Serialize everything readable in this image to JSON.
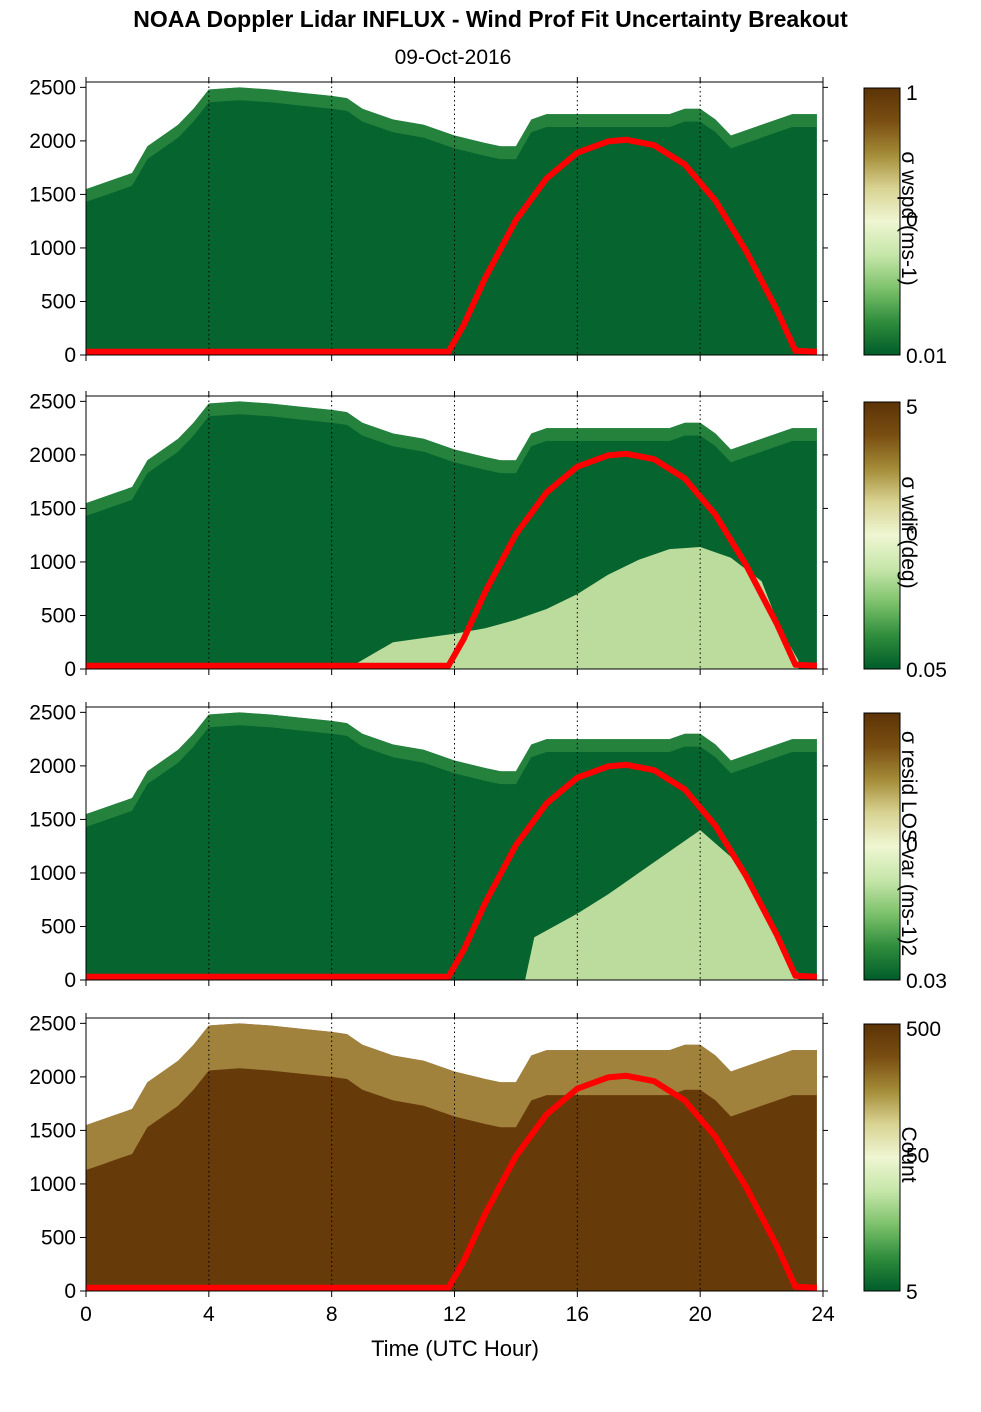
{
  "title": "NOAA Doppler Lidar INFLUX - Wind Prof Fit Uncertainty Breakout",
  "subtitle": "09-Oct-2016",
  "chart_data": {
    "type": "heatmap",
    "xlabel": "Time (UTC Hour)",
    "x_ticks": [
      0,
      4,
      8,
      12,
      16,
      20,
      24
    ],
    "x_range": [
      0,
      24
    ],
    "y_ticks": [
      0,
      500,
      1000,
      1500,
      2000,
      2500
    ],
    "y_range": [
      0,
      2550
    ],
    "vertical_dotted_lines_hours": [
      4,
      8,
      12,
      16,
      20,
      24
    ],
    "overlay_line": {
      "color": "#ff0000",
      "points": [
        [
          0,
          30
        ],
        [
          11.8,
          30
        ],
        [
          12.3,
          280
        ],
        [
          13,
          720
        ],
        [
          14,
          1260
        ],
        [
          15,
          1650
        ],
        [
          16,
          1890
        ],
        [
          17,
          1995
        ],
        [
          17.6,
          2010
        ],
        [
          18.5,
          1960
        ],
        [
          19.5,
          1780
        ],
        [
          20.5,
          1440
        ],
        [
          21.5,
          970
        ],
        [
          22.5,
          420
        ],
        [
          23.1,
          40
        ],
        [
          23.8,
          30
        ]
      ]
    },
    "colormap": [
      "#005c2a",
      "#2f8d3c",
      "#7dc26c",
      "#c6e6a9",
      "#eef6d2",
      "#d9d393",
      "#a48c38",
      "#7a4e12",
      "#5c3306"
    ],
    "panels": [
      {
        "name": "wspd",
        "colorbar_label": "σ wspd (ms-1)",
        "colorbar_ticks": [
          "1",
          "0",
          "0.01"
        ],
        "field": {
          "top": [
            [
              0,
              1550
            ],
            [
              0.5,
              1600
            ],
            [
              1,
              1650
            ],
            [
              1.5,
              1700
            ],
            [
              2,
              1950
            ],
            [
              2.5,
              2050
            ],
            [
              3,
              2150
            ],
            [
              3.5,
              2300
            ],
            [
              4,
              2480
            ],
            [
              5,
              2500
            ],
            [
              6,
              2480
            ],
            [
              7,
              2450
            ],
            [
              8,
              2420
            ],
            [
              8.5,
              2400
            ],
            [
              9,
              2300
            ],
            [
              10,
              2200
            ],
            [
              11,
              2150
            ],
            [
              12,
              2050
            ],
            [
              13,
              1980
            ],
            [
              13.5,
              1950
            ],
            [
              14,
              1950
            ],
            [
              14.5,
              2200
            ],
            [
              15,
              2250
            ],
            [
              16,
              2250
            ],
            [
              17,
              2250
            ],
            [
              18,
              2250
            ],
            [
              19,
              2250
            ],
            [
              19.5,
              2300
            ],
            [
              20,
              2300
            ],
            [
              20.5,
              2200
            ],
            [
              21,
              2050
            ],
            [
              22,
              2150
            ],
            [
              23,
              2250
            ],
            [
              23.8,
              2250
            ]
          ],
          "low_layer": []
        }
      },
      {
        "name": "wdir",
        "colorbar_label": "σ wdir (deg)",
        "colorbar_ticks": [
          "5",
          "0",
          "0.05"
        ],
        "field": {
          "top": [
            [
              0,
              1550
            ],
            [
              0.5,
              1600
            ],
            [
              1,
              1650
            ],
            [
              1.5,
              1700
            ],
            [
              2,
              1950
            ],
            [
              2.5,
              2050
            ],
            [
              3,
              2150
            ],
            [
              3.5,
              2300
            ],
            [
              4,
              2480
            ],
            [
              5,
              2500
            ],
            [
              6,
              2480
            ],
            [
              7,
              2450
            ],
            [
              8,
              2420
            ],
            [
              8.5,
              2400
            ],
            [
              9,
              2300
            ],
            [
              10,
              2200
            ],
            [
              11,
              2150
            ],
            [
              12,
              2050
            ],
            [
              13,
              1980
            ],
            [
              13.5,
              1950
            ],
            [
              14,
              1950
            ],
            [
              14.5,
              2200
            ],
            [
              15,
              2250
            ],
            [
              16,
              2250
            ],
            [
              17,
              2250
            ],
            [
              18,
              2250
            ],
            [
              19,
              2250
            ],
            [
              19.5,
              2300
            ],
            [
              20,
              2300
            ],
            [
              20.5,
              2200
            ],
            [
              21,
              2050
            ],
            [
              22,
              2150
            ],
            [
              23,
              2250
            ],
            [
              23.8,
              2250
            ]
          ],
          "low_layer": [
            [
              8.5,
              0
            ],
            [
              10,
              250
            ],
            [
              12,
              330
            ],
            [
              13,
              380
            ],
            [
              14,
              460
            ],
            [
              15,
              560
            ],
            [
              16,
              700
            ],
            [
              17,
              880
            ],
            [
              18,
              1020
            ],
            [
              19,
              1120
            ],
            [
              20,
              1140
            ],
            [
              21,
              1040
            ],
            [
              22,
              820
            ],
            [
              22.6,
              380
            ],
            [
              23.2,
              80
            ]
          ]
        }
      },
      {
        "name": "resid",
        "colorbar_label": "σ resid LOS var (ms-1)2",
        "colorbar_ticks": [
          "0",
          "0.03"
        ],
        "field": {
          "top": [
            [
              0,
              1550
            ],
            [
              0.5,
              1600
            ],
            [
              1,
              1650
            ],
            [
              1.5,
              1700
            ],
            [
              2,
              1950
            ],
            [
              2.5,
              2050
            ],
            [
              3,
              2150
            ],
            [
              3.5,
              2300
            ],
            [
              4,
              2480
            ],
            [
              5,
              2500
            ],
            [
              6,
              2480
            ],
            [
              7,
              2450
            ],
            [
              8,
              2420
            ],
            [
              8.5,
              2400
            ],
            [
              9,
              2300
            ],
            [
              10,
              2200
            ],
            [
              11,
              2150
            ],
            [
              12,
              2050
            ],
            [
              13,
              1980
            ],
            [
              13.5,
              1950
            ],
            [
              14,
              1950
            ],
            [
              14.5,
              2200
            ],
            [
              15,
              2250
            ],
            [
              16,
              2250
            ],
            [
              17,
              2250
            ],
            [
              18,
              2250
            ],
            [
              19,
              2250
            ],
            [
              19.5,
              2300
            ],
            [
              20,
              2300
            ],
            [
              20.5,
              2200
            ],
            [
              21,
              2050
            ],
            [
              22,
              2150
            ],
            [
              23,
              2250
            ],
            [
              23.8,
              2250
            ]
          ],
          "low_layer": [
            [
              14.3,
              0
            ],
            [
              14.6,
              400
            ],
            [
              16,
              620
            ],
            [
              17,
              800
            ],
            [
              18,
              1000
            ],
            [
              19,
              1200
            ],
            [
              20,
              1400
            ],
            [
              21,
              1150
            ],
            [
              22,
              700
            ],
            [
              22.6,
              300
            ],
            [
              23.2,
              60
            ]
          ]
        }
      },
      {
        "name": "count",
        "colorbar_label": "Count",
        "colorbar_ticks": [
          "500",
          "50",
          "5"
        ],
        "field": {
          "top": [
            [
              0,
              1550
            ],
            [
              0.5,
              1600
            ],
            [
              1,
              1650
            ],
            [
              1.5,
              1700
            ],
            [
              2,
              1950
            ],
            [
              2.5,
              2050
            ],
            [
              3,
              2150
            ],
            [
              3.5,
              2300
            ],
            [
              4,
              2480
            ],
            [
              5,
              2500
            ],
            [
              6,
              2480
            ],
            [
              7,
              2450
            ],
            [
              8,
              2420
            ],
            [
              8.5,
              2400
            ],
            [
              9,
              2300
            ],
            [
              10,
              2200
            ],
            [
              11,
              2150
            ],
            [
              12,
              2050
            ],
            [
              13,
              1980
            ],
            [
              13.5,
              1950
            ],
            [
              14,
              1950
            ],
            [
              14.5,
              2200
            ],
            [
              15,
              2250
            ],
            [
              16,
              2250
            ],
            [
              17,
              2250
            ],
            [
              18,
              2250
            ],
            [
              19,
              2250
            ],
            [
              19.5,
              2300
            ],
            [
              20,
              2300
            ],
            [
              20.5,
              2200
            ],
            [
              21,
              2050
            ],
            [
              22,
              2150
            ],
            [
              23,
              2250
            ],
            [
              23.8,
              2250
            ]
          ],
          "low_layer": []
        }
      }
    ]
  }
}
